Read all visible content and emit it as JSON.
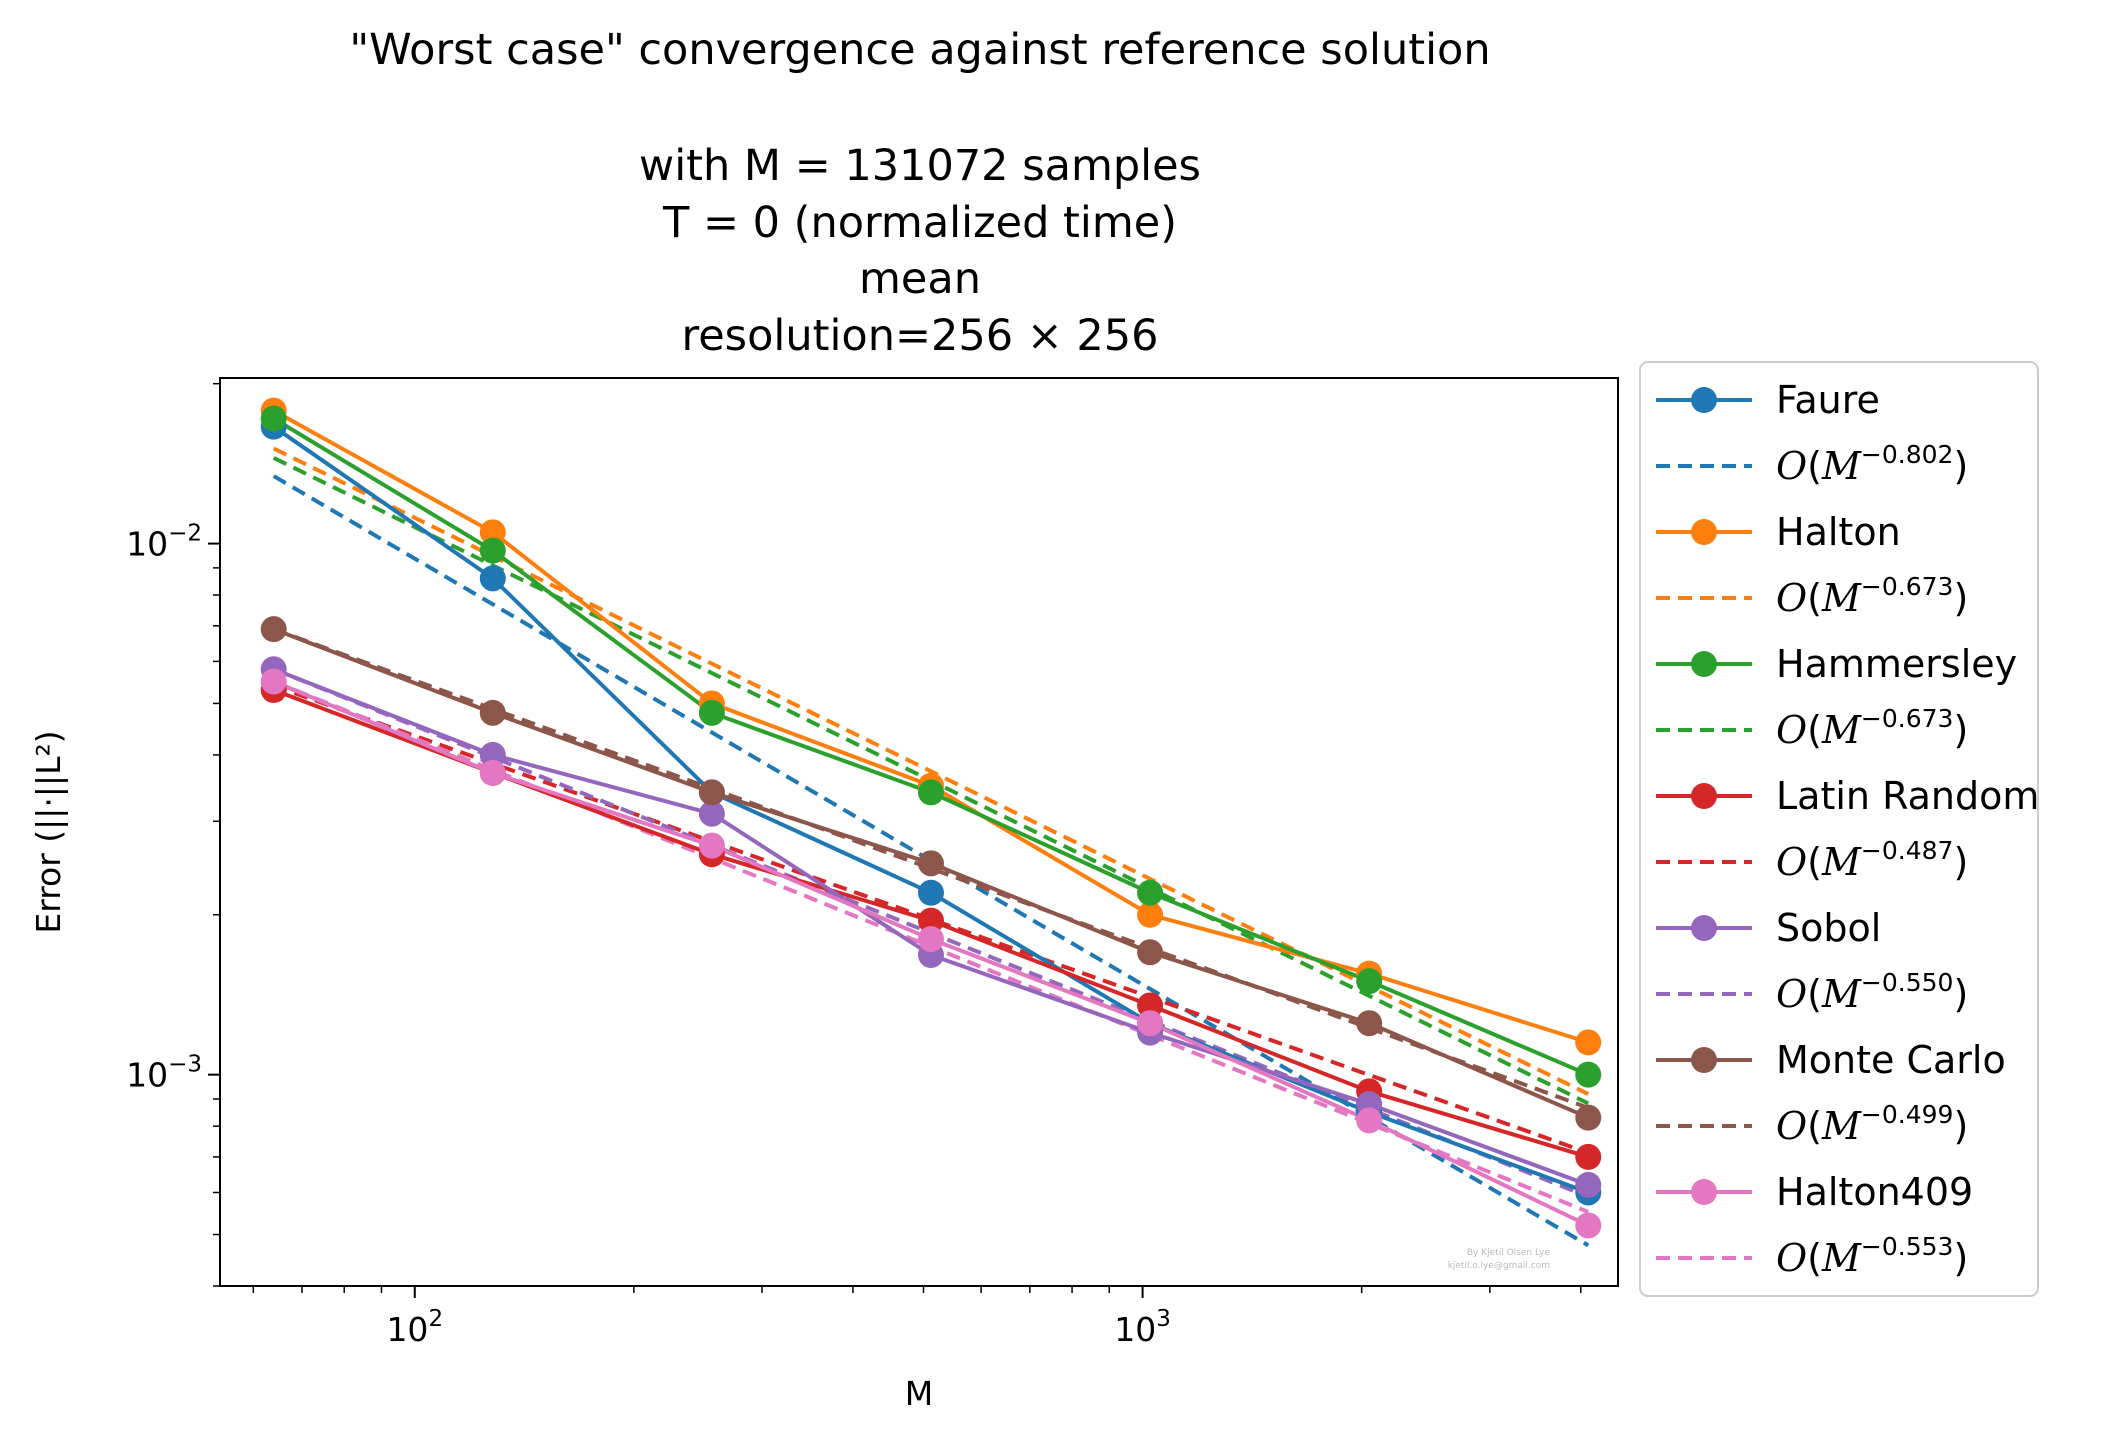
{
  "chart_data": {
    "type": "line",
    "title_lines": [
      "\"Worst case\" convergence against reference solution",
      "",
      "with M = 131072 samples",
      "T = 0 (normalized time)",
      "mean",
      "resolution=256 × 256"
    ],
    "xlabel": "M",
    "ylabel": "Error (||·||L²)",
    "x_scale": "log",
    "y_scale": "log",
    "xlim": [
      54,
      4500
    ],
    "ylim": [
      0.0004,
      0.0205
    ],
    "x_ticks": [
      {
        "value": 100,
        "base": "10",
        "exp": "2"
      },
      {
        "value": 1000,
        "base": "10",
        "exp": "3"
      }
    ],
    "y_ticks": [
      {
        "value": 0.01,
        "base": "10",
        "exp": "−2"
      },
      {
        "value": 0.001,
        "base": "10",
        "exp": "−3"
      }
    ],
    "grid": false,
    "legend_position": "outside-right",
    "x": [
      64,
      128,
      256,
      512,
      1024,
      2048,
      4096
    ],
    "series": [
      {
        "name": "Faure",
        "color": "#1f77b4",
        "values": [
          0.0166,
          0.0086,
          0.0034,
          0.0022,
          0.00125,
          0.00085,
          0.0006
        ],
        "fit_label": "O(M",
        "fit_exp": "−0.802",
        "fit_slope": -0.802,
        "fit_at_64": 0.0134
      },
      {
        "name": "Halton",
        "color": "#ff7f0e",
        "values": [
          0.0178,
          0.0105,
          0.005,
          0.0035,
          0.002,
          0.00155,
          0.00115
        ],
        "fit_label": "O(M",
        "fit_exp": "−0.673",
        "fit_slope": -0.673,
        "fit_at_64": 0.0151
      },
      {
        "name": "Hammersley",
        "color": "#2ca02c",
        "values": [
          0.0172,
          0.0097,
          0.0048,
          0.0034,
          0.0022,
          0.0015,
          0.001
        ],
        "fit_label": "O(M",
        "fit_exp": "−0.673",
        "fit_slope": -0.673,
        "fit_at_64": 0.0145
      },
      {
        "name": "Latin Random",
        "color": "#d62728",
        "values": [
          0.0053,
          0.0037,
          0.0026,
          0.00195,
          0.00135,
          0.00093,
          0.0007
        ],
        "fit_label": "O(M",
        "fit_exp": "−0.487",
        "fit_slope": -0.487,
        "fit_at_64": 0.0054
      },
      {
        "name": "Sobol",
        "color": "#9467bd",
        "values": [
          0.0058,
          0.004,
          0.0031,
          0.00168,
          0.0012,
          0.00088,
          0.00062
        ],
        "fit_label": "O(M",
        "fit_exp": "−0.550",
        "fit_slope": -0.55,
        "fit_at_64": 0.0058
      },
      {
        "name": "Monte Carlo",
        "color": "#8c564b",
        "values": [
          0.0069,
          0.0048,
          0.0034,
          0.0025,
          0.0017,
          0.00125,
          0.00083
        ],
        "fit_label": "O(M",
        "fit_exp": "−0.499",
        "fit_slope": -0.499,
        "fit_at_64": 0.0069
      },
      {
        "name": "Halton409",
        "color": "#e377c2",
        "values": [
          0.0055,
          0.0037,
          0.0027,
          0.0018,
          0.00125,
          0.00082,
          0.00052
        ],
        "fit_label": "O(M",
        "fit_exp": "−0.553",
        "fit_slope": -0.553,
        "fit_at_64": 0.0055
      }
    ]
  },
  "credit": {
    "line1": "By Kjetil Olsen Lye",
    "line2": "kjetil.o.lye@gmail.com"
  }
}
